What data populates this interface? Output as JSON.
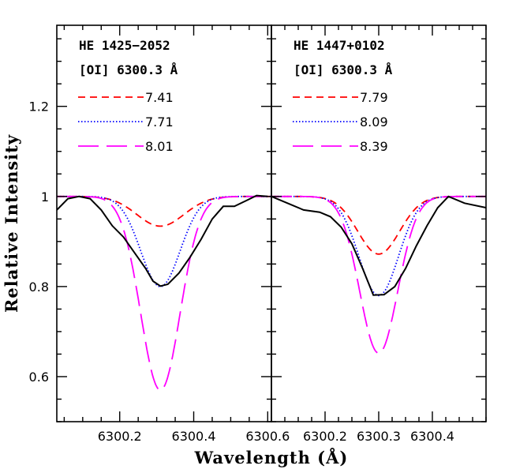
{
  "chart_data": [
    {
      "type": "line",
      "title": "HE 1425−2052",
      "subtitle": "[OI] 6300.3 Å",
      "xlabel": "Wavelength (Å)",
      "ylabel": "Relative Intensity",
      "xlim": [
        6300.03,
        6300.61
      ],
      "ylim": [
        0.5,
        1.38
      ],
      "x_ticks": [
        6300.2,
        6300.4,
        6300.6
      ],
      "x_tick_labels": [
        "6300.2",
        "6300.4",
        "6300.6"
      ],
      "y_ticks": [
        0.6,
        0.8,
        1.0,
        1.2
      ],
      "y_tick_labels": [
        "0.6",
        "0.8",
        "1",
        "1.2"
      ],
      "legend_position": "top-left",
      "series": [
        {
          "name": "7.41",
          "color": "#ff0000",
          "dash": "dashed",
          "center": 6300.31,
          "depth": 0.066,
          "sigma": 0.09
        },
        {
          "name": "7.71",
          "color": "#0000ff",
          "dash": "dotted",
          "center": 6300.31,
          "depth": 0.2,
          "sigma": 0.075
        },
        {
          "name": "8.01",
          "color": "#ff00ff",
          "dash": "long-dashed",
          "center": 6300.31,
          "depth": 0.43,
          "sigma": 0.075
        },
        {
          "name": "",
          "color": "#000000",
          "dash": "solid",
          "x": [
            6300.03,
            6300.06,
            6300.09,
            6300.12,
            6300.15,
            6300.18,
            6300.21,
            6300.24,
            6300.27,
            6300.29,
            6300.31,
            6300.33,
            6300.36,
            6300.39,
            6300.42,
            6300.45,
            6300.48,
            6300.51,
            6300.54,
            6300.57,
            6300.6
          ],
          "y": [
            0.97,
            0.995,
            1.0,
            0.995,
            0.97,
            0.935,
            0.91,
            0.875,
            0.84,
            0.812,
            0.801,
            0.805,
            0.83,
            0.865,
            0.905,
            0.95,
            0.978,
            0.978,
            0.99,
            1.002,
            1.0
          ]
        }
      ]
    },
    {
      "type": "line",
      "title": "HE 1447+0102",
      "subtitle": "[OI] 6300.3 Å",
      "xlabel": "Wavelength (Å)",
      "ylabel": "Relative Intensity",
      "xlim": [
        6300.1,
        6300.5
      ],
      "ylim": [
        0.5,
        1.38
      ],
      "x_ticks": [
        6300.2,
        6300.3,
        6300.4
      ],
      "x_tick_labels": [
        "6300.2",
        "6300.3",
        "6300.4"
      ],
      "y_ticks": [
        0.6,
        0.8,
        1.0,
        1.2
      ],
      "legend_position": "top-left",
      "series": [
        {
          "name": "7.79",
          "color": "#ff0000",
          "dash": "dashed",
          "center": 6300.3,
          "depth": 0.128,
          "sigma": 0.055
        },
        {
          "name": "8.09",
          "color": "#0000ff",
          "dash": "dotted",
          "center": 6300.3,
          "depth": 0.22,
          "sigma": 0.052
        },
        {
          "name": "8.39",
          "color": "#ff00ff",
          "dash": "long-dashed",
          "center": 6300.3,
          "depth": 0.348,
          "sigma": 0.05
        },
        {
          "name": "",
          "color": "#000000",
          "dash": "solid",
          "x": [
            6300.1,
            6300.13,
            6300.16,
            6300.19,
            6300.21,
            6300.23,
            6300.25,
            6300.27,
            6300.29,
            6300.31,
            6300.33,
            6300.35,
            6300.37,
            6300.39,
            6300.41,
            6300.43,
            6300.46,
            6300.5
          ],
          "y": [
            1.0,
            0.985,
            0.97,
            0.965,
            0.955,
            0.932,
            0.895,
            0.84,
            0.781,
            0.782,
            0.8,
            0.84,
            0.89,
            0.935,
            0.975,
            1.0,
            0.985,
            0.975
          ]
        }
      ]
    }
  ]
}
